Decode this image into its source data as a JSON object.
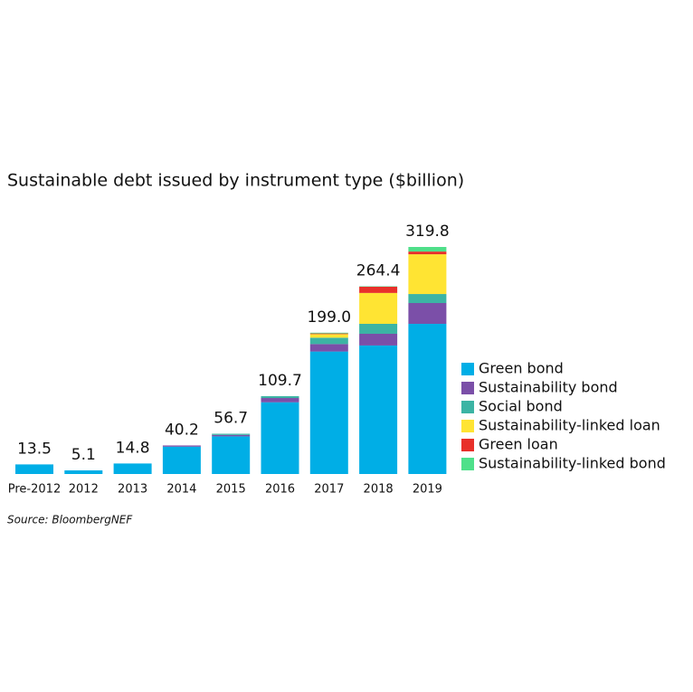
{
  "chart_data": {
    "type": "stacked_bar",
    "title": "Sustainable debt issued by instrument type ($billion)",
    "source": "Source: BloombergNEF",
    "categories": [
      "Pre-2012",
      "2012",
      "2013",
      "2014",
      "2015",
      "2016",
      "2017",
      "2018",
      "2019"
    ],
    "totals": [
      13.5,
      5.1,
      14.8,
      40.2,
      56.7,
      109.7,
      199.0,
      264.4,
      319.8
    ],
    "total_labels": [
      "13.5",
      "5.1",
      "14.8",
      "40.2",
      "56.7",
      "109.7",
      "199.0",
      "264.4",
      "319.8"
    ],
    "series": [
      {
        "name": "Green bond",
        "color": "#00aee6",
        "values": [
          13.5,
          5.1,
          14.8,
          38.5,
          53,
          101,
          172.5,
          181,
          211.5
        ]
      },
      {
        "name": "Sustainability bond",
        "color": "#7b4fa8",
        "values": [
          0,
          0,
          0,
          1.7,
          2,
          6,
          10.5,
          16.5,
          29.3
        ]
      },
      {
        "name": "Social bond",
        "color": "#3cb4a4",
        "values": [
          0,
          0,
          0,
          0,
          1.7,
          2.7,
          9,
          14,
          12.7
        ]
      },
      {
        "name": "Sustainability-linked loan",
        "color": "#ffe433",
        "values": [
          0,
          0,
          0,
          0,
          0,
          0,
          5,
          43.5,
          56
        ]
      },
      {
        "name": "Green loan",
        "color": "#e8302a",
        "values": [
          0,
          0,
          0,
          0,
          0,
          0,
          1,
          8.8,
          3.8
        ]
      },
      {
        "name": "Sustainability-linked bond",
        "color": "#4ee08a",
        "values": [
          0,
          0,
          0,
          0,
          0,
          0,
          1,
          0.6,
          6.5
        ]
      }
    ],
    "legend": "right"
  }
}
